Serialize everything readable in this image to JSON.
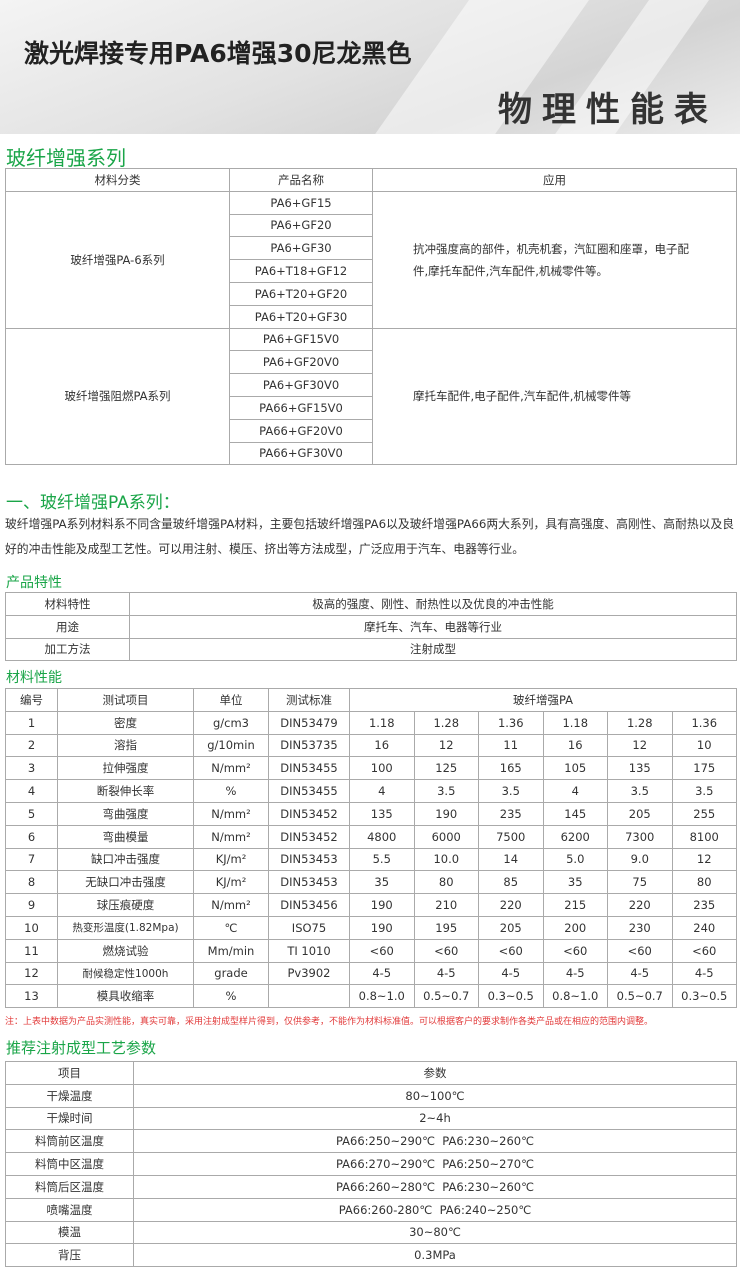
{
  "header": {
    "title": "激光焊接专用PA6增强30尼龙黑色",
    "subtitle": "物理性能表"
  },
  "series_section": {
    "title": "玻纤增强系列",
    "headers": [
      "材料分类",
      "产品名称",
      "应用"
    ],
    "groups": [
      {
        "category": "玻纤增强PA-6系列",
        "products": [
          "PA6+GF15",
          "PA6+GF20",
          "PA6+GF30",
          "PA6+T18+GF12",
          "PA6+T20+GF20",
          "PA6+T20+GF30"
        ],
        "application": "抗冲强度高的部件，机壳机套，汽缸圈和座罩，电子配件,摩托车配件,汽车配件,机械零件等。"
      },
      {
        "category": "玻纤增强阻燃PA系列",
        "products": [
          "PA6+GF15V0",
          "PA6+GF20V0",
          "PA6+GF30V0",
          "PA66+GF15V0",
          "PA66+GF20V0",
          "PA66+GF30V0"
        ],
        "application": "摩托车配件,电子配件,汽车配件,机械零件等"
      }
    ]
  },
  "intro": {
    "title": "一、玻纤增强PA系列：",
    "text": "玻纤增强PA系列材料系不同含量玻纤增强PA材料，主要包括玻纤增强PA6以及玻纤增强PA66两大系列，具有高强度、高刚性、高耐热以及良好的冲击性能及成型工艺性。可以用注射、模压、挤出等方法成型，广泛应用于汽车、电器等行业。"
  },
  "features": {
    "title": "产品特性",
    "rows": [
      [
        "材料特性",
        "极高的强度、刚性、耐热性以及优良的冲击性能"
      ],
      [
        "用途",
        "摩托车、汽车、电器等行业"
      ],
      [
        "加工方法",
        "注射成型"
      ]
    ]
  },
  "properties": {
    "title": "材料性能",
    "headers": [
      "编号",
      "测试项目",
      "单位",
      "测试标准",
      "玻纤增强PA"
    ],
    "rows": [
      [
        "1",
        "密度",
        "g/cm3",
        "DIN53479",
        "1.18",
        "1.28",
        "1.36",
        "1.18",
        "1.28",
        "1.36"
      ],
      [
        "2",
        "溶指",
        "g/10min",
        "DIN53735",
        "16",
        "12",
        "11",
        "16",
        "12",
        "10"
      ],
      [
        "3",
        "拉伸强度",
        "N/mm²",
        "DIN53455",
        "100",
        "125",
        "165",
        "105",
        "135",
        "175"
      ],
      [
        "4",
        "断裂伸长率",
        "%",
        "DIN53455",
        "4",
        "3.5",
        "3.5",
        "4",
        "3.5",
        "3.5"
      ],
      [
        "5",
        "弯曲强度",
        "N/mm²",
        "DIN53452",
        "135",
        "190",
        "235",
        "145",
        "205",
        "255"
      ],
      [
        "6",
        "弯曲模量",
        "N/mm²",
        "DIN53452",
        "4800",
        "6000",
        "7500",
        "6200",
        "7300",
        "8100"
      ],
      [
        "7",
        "缺口冲击强度",
        "KJ/m²",
        "DIN53453",
        "5.5",
        "10.0",
        "14",
        "5.0",
        "9.0",
        "12"
      ],
      [
        "8",
        "无缺口冲击强度",
        "KJ/m²",
        "DIN53453",
        "35",
        "80",
        "85",
        "35",
        "75",
        "80"
      ],
      [
        "9",
        "球压痕硬度",
        "N/mm²",
        "DIN53456",
        "190",
        "210",
        "220",
        "215",
        "220",
        "235"
      ],
      [
        "10",
        "热变形温度(1.82Mpa)",
        "℃",
        "ISO75",
        "190",
        "195",
        "205",
        "200",
        "230",
        "240"
      ],
      [
        "11",
        "燃烧试验",
        "Mm/min",
        "TI 1010",
        "<60",
        "<60",
        "<60",
        "<60",
        "<60",
        "<60"
      ],
      [
        "12",
        "耐候稳定性1000h",
        "grade",
        "Pv3902",
        "4-5",
        "4-5",
        "4-5",
        "4-5",
        "4-5",
        "4-5"
      ],
      [
        "13",
        "模具收缩率",
        "%",
        "",
        "0.8~1.0",
        "0.5~0.7",
        "0.3~0.5",
        "0.8~1.0",
        "0.5~0.7",
        "0.3~0.5"
      ]
    ],
    "note": "注：上表中数据为产品实测性能，真实可靠，采用注射成型样片得到，仅供参考，不能作为材料标准值。可以根据客户的要求制作各类产品或在相应的范围内调整。"
  },
  "process": {
    "title": "推荐注射成型工艺参数",
    "headers": [
      "项目",
      "参数"
    ],
    "rows": [
      [
        "干燥温度",
        "80~100℃"
      ],
      [
        "干燥时间",
        "2~4h"
      ],
      [
        "料筒前区温度",
        "PA66:250~290℃  PA6:230~260℃"
      ],
      [
        "料筒中区温度",
        "PA66:270~290℃  PA6:250~270℃"
      ],
      [
        "料筒后区温度",
        "PA66:260~280℃  PA6:230~260℃"
      ],
      [
        "喷嘴温度",
        "PA66:260-280℃  PA6:240~250℃"
      ],
      [
        "模温",
        "30~80℃"
      ],
      [
        "背压",
        "0.3MPa"
      ]
    ]
  },
  "colors": {
    "accent": "#1aa548",
    "note": "#e23a3a"
  }
}
